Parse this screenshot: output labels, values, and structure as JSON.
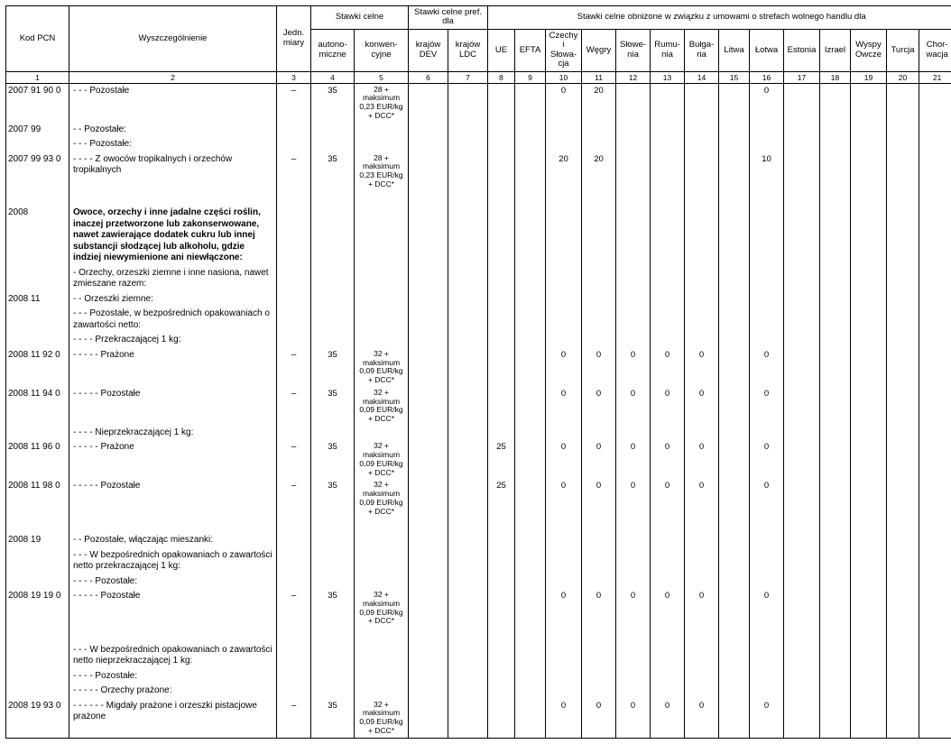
{
  "header": {
    "kod": "Kod PCN",
    "wysz": "Wyszczególnienie",
    "jedn": "Jedn. miary",
    "stawki_celne": "Stawki celne",
    "auto": "auto­no­miczne",
    "konw": "konwen­cyjne",
    "pref": "Stawki celne pref. dla",
    "dev": "krajów DEV",
    "ldc": "krajów LDC",
    "obniz": "Stawki celne obniżone w związku z umowami o strefach wolnego handlu dla",
    "ue": "UE",
    "efta": "EFTA",
    "czechy": "Czechy i Słowa­cja",
    "wegry": "Węgry",
    "slowe": "Słowe­nia",
    "rumu": "Rumu­nia",
    "bulga": "Bułga­ria",
    "litwa": "Litwa",
    "lotwa": "Łotwa",
    "estonia": "Estonia",
    "izrael": "Izrael",
    "wyspy": "Wyspy Owcze",
    "turcja": "Turcja",
    "chorw": "Chor­wacja"
  },
  "colnums": [
    "1",
    "2",
    "3",
    "4",
    "5",
    "6",
    "7",
    "8",
    "9",
    "10",
    "11",
    "12",
    "13",
    "14",
    "15",
    "16",
    "17",
    "18",
    "19",
    "20",
    "21"
  ],
  "rows": [
    {
      "code": "2007 91 90 0",
      "desc": "- - - Pozostałe",
      "unit": "–",
      "c4": "35",
      "c5": "28 +\nmaksimum\n0,23 EUR/kg\n+ DCC*",
      "c10": "0",
      "c11": "20",
      "c16": "0"
    },
    {
      "code": "2007 99",
      "desc": "- - Pozostałe:"
    },
    {
      "desc": "- - - Pozostałe:"
    },
    {
      "code": "2007 99 93 0",
      "desc": "- - - - Z owoców tropikalnych i orzechów tropikalnych",
      "unit": "–",
      "c4": "35",
      "c5": "28 +\nmaksimum\n0,23 EUR/kg\n+ DCC*",
      "c10": "20",
      "c11": "20",
      "c16": "10"
    },
    {
      "spacer": true
    },
    {
      "code": "2008",
      "desc": "Owoce, orzechy i inne jadalne części roślin, inaczej przetworzone lub zakonserwowane, nawet zawierające dodatek cukru lub innej substancji słodzącej lub alkoholu, gdzie indziej niewymienione ani niewłączone:",
      "bold": true
    },
    {
      "desc": "- Orzechy, orzeszki ziemne i inne nasiona, nawet zmieszane razem:"
    },
    {
      "code": "2008 11",
      "desc": "- - Orzeszki ziemne:"
    },
    {
      "desc": "- - - Pozostałe, w bezpośrednich opakowaniach o zawartości netto:"
    },
    {
      "desc": "- - - - Przekraczającej 1 kg:"
    },
    {
      "code": "2008 11 92 0",
      "desc": "- - - - - Prażone",
      "unit": "–",
      "c4": "35",
      "c5": "32 +\nmaksimum\n0,09 EUR/kg\n+ DCC*",
      "c10": "0",
      "c11": "0",
      "c12": "0",
      "c13": "0",
      "c14": "0",
      "c16": "0"
    },
    {
      "code": "2008 11 94 0",
      "desc": "- - - - - Pozostałe",
      "unit": "–",
      "c4": "35",
      "c5": "32 +\nmaksimum\n0,09 EUR/kg\n+ DCC*",
      "c10": "0",
      "c11": "0",
      "c12": "0",
      "c13": "0",
      "c14": "0",
      "c16": "0"
    },
    {
      "desc": "- - - - Nieprzekraczającej 1 kg:"
    },
    {
      "code": "2008 11 96 0",
      "desc": "- - - - - Prażone",
      "unit": "–",
      "c4": "35",
      "c5": "32 +\nmaksimum\n0,09 EUR/kg\n+ DCC*",
      "c8": "25",
      "c10": "0",
      "c11": "0",
      "c12": "0",
      "c13": "0",
      "c14": "0",
      "c16": "0"
    },
    {
      "code": "2008 11 98 0",
      "desc": "- - - - - Pozostałe",
      "unit": "–",
      "c4": "35",
      "c5": "32 +\nmaksimum\n0,09 EUR/kg\n+ DCC*",
      "c8": "25",
      "c10": "0",
      "c11": "0",
      "c12": "0",
      "c13": "0",
      "c14": "0",
      "c16": "0"
    },
    {
      "spacer": true
    },
    {
      "code": "2008 19",
      "desc": "- - Pozostałe, włączając mieszanki:"
    },
    {
      "desc": "- - - W bezpośrednich opakowaniach o zawartości netto przekraczającej 1 kg:"
    },
    {
      "desc": "- - - - Pozostałe:"
    },
    {
      "code": "2008 19 19 0",
      "desc": "- - - - - Pozostałe",
      "unit": "–",
      "c4": "35",
      "c5": "32 +\nmaksimum\n0,09 EUR/kg\n+ DCC*",
      "c10": "0",
      "c11": "0",
      "c12": "0",
      "c13": "0",
      "c14": "0",
      "c16": "0"
    },
    {
      "spacer": true
    },
    {
      "desc": "- - - W bezpośrednich opakowaniach o zawartości netto nieprzekraczającej 1 kg:"
    },
    {
      "desc": "- - - - Pozostałe:"
    },
    {
      "desc": "- - - - - Orzechy prażone:"
    },
    {
      "code": "2008 19 93 0",
      "desc": "- - - - - - Migdały prażone i orzeszki pistacjowe prażone",
      "unit": "–",
      "c4": "35",
      "c5": "32 +\nmaksimum\n0,09 EUR/kg\n+ DCC*",
      "c10": "0",
      "c11": "0",
      "c12": "0",
      "c13": "0",
      "c14": "0",
      "c16": "0"
    }
  ],
  "style": {
    "border_color": "#000000",
    "background": "#ffffff",
    "font_body_pt": 10,
    "font_header_pt": 9.5,
    "font_rate_pt": 8.5
  }
}
